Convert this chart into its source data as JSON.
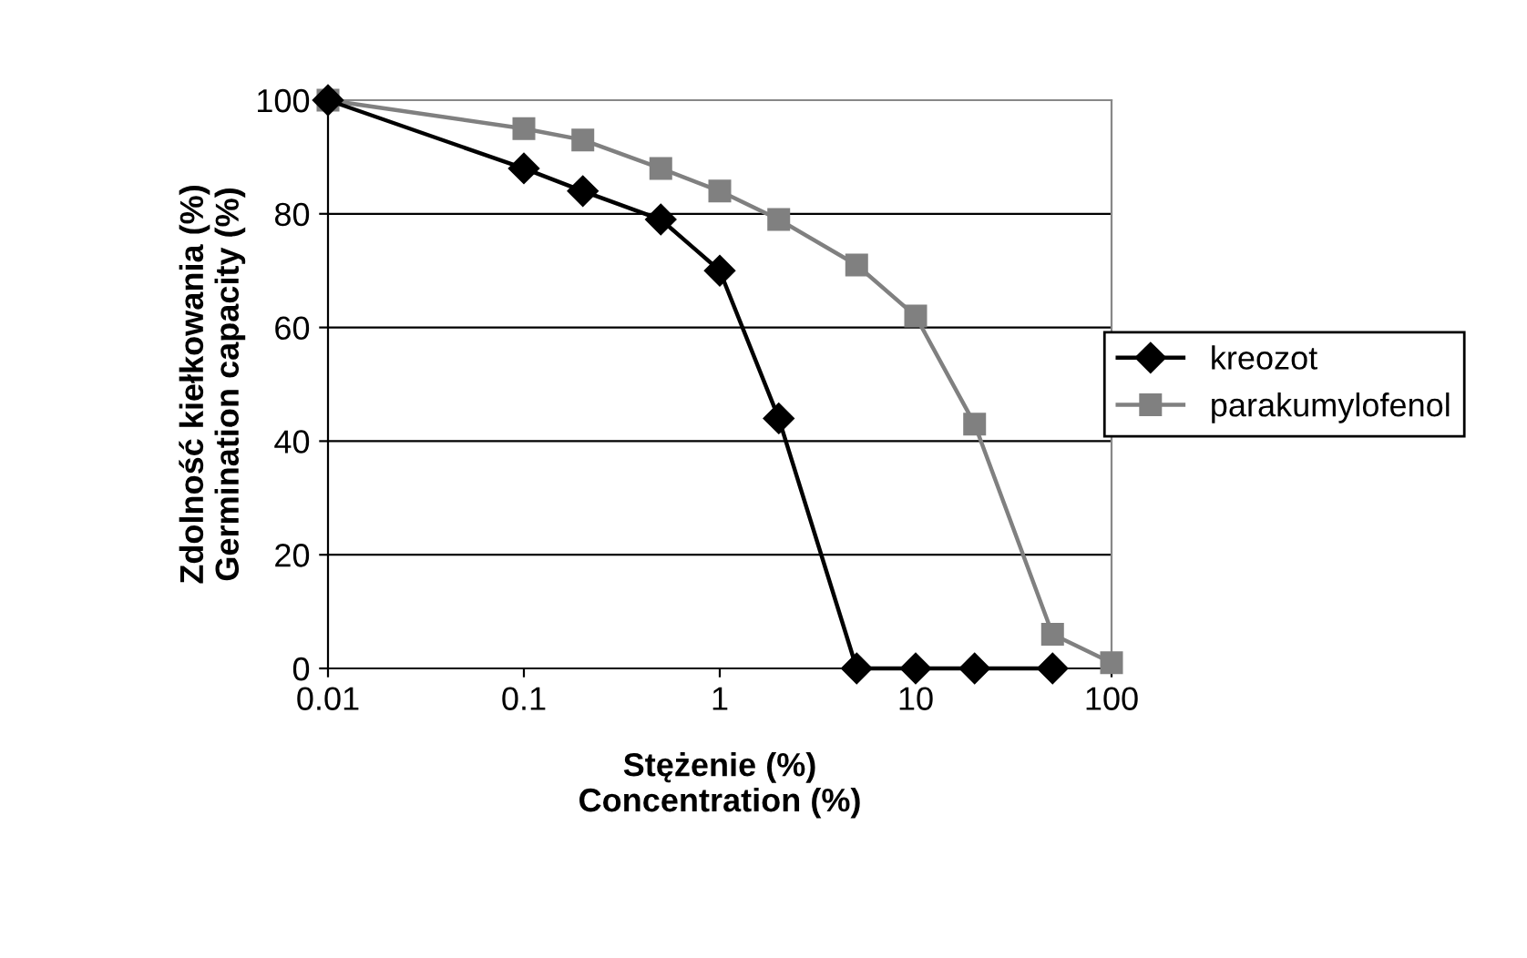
{
  "chart_data": {
    "type": "line",
    "xlabel": "Stężenie (%)\nConcentration (%)",
    "ylabel": "Zdolność kiełkowania (%)\nGermination capacity (%)",
    "log": "x",
    "xlim": [
      0.01,
      100
    ],
    "xticks": [
      0.01,
      0.1,
      1,
      10,
      100
    ],
    "ylim": [
      0,
      100
    ],
    "yticks": [
      0,
      20,
      40,
      60,
      80,
      100
    ],
    "grid": "y",
    "legend": "right",
    "line_style": "solid",
    "series": [
      {
        "name": "kreozot",
        "color": "#000000",
        "marker": "diamond",
        "x": [
          0.01,
          0.1,
          0.2,
          0.5,
          1,
          2,
          5,
          10,
          20,
          50
        ],
        "values": [
          100,
          88,
          84,
          79,
          70,
          44,
          0,
          0,
          0,
          0
        ]
      },
      {
        "name": "parakumylofenol",
        "color": "#808080",
        "marker": "square",
        "x": [
          0.01,
          0.1,
          0.2,
          0.5,
          1,
          2,
          5,
          10,
          20,
          50,
          100
        ],
        "values": [
          100,
          95,
          93,
          88,
          84,
          79,
          71,
          62,
          43,
          6,
          1
        ]
      }
    ]
  }
}
